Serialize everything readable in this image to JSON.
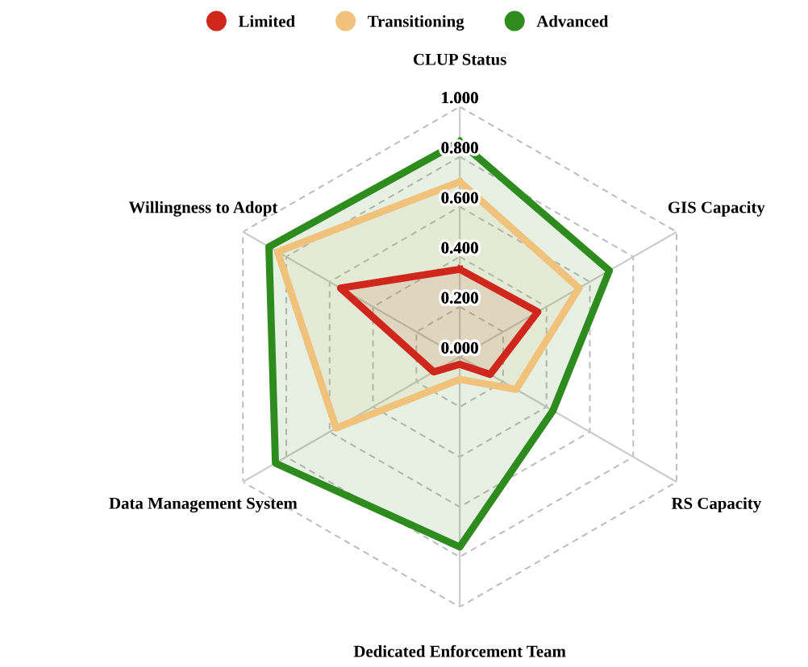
{
  "chart_data": {
    "type": "radar",
    "categories": [
      "CLUP Status",
      "GIS Capacity",
      "RS Capacity",
      "Dedicated Enforcement Team",
      "Data Management System",
      "Willingness to Adopt"
    ],
    "series": [
      {
        "name": "Limited",
        "color": "#d0271d",
        "values": [
          0.35,
          0.36,
          0.14,
          0.03,
          0.12,
          0.55
        ]
      },
      {
        "name": "Transitioning",
        "color": "#f0c27b",
        "values": [
          0.7,
          0.55,
          0.26,
          0.09,
          0.57,
          0.84
        ]
      },
      {
        "name": "Advanced",
        "color": "#2e8b1e",
        "values": [
          0.86,
          0.69,
          0.43,
          0.76,
          0.85,
          0.88
        ]
      }
    ],
    "ylim": [
      0,
      1
    ],
    "yticks": [
      {
        "value": 0,
        "label": "0.000"
      },
      {
        "value": 0.2,
        "label": "0.200"
      },
      {
        "value": 0.4,
        "label": "0.400"
      },
      {
        "value": 0.6,
        "label": "0.600"
      },
      {
        "value": 0.8,
        "label": "0.800"
      },
      {
        "value": 1,
        "label": "1.000"
      }
    ],
    "grid": true,
    "legend": "top"
  }
}
